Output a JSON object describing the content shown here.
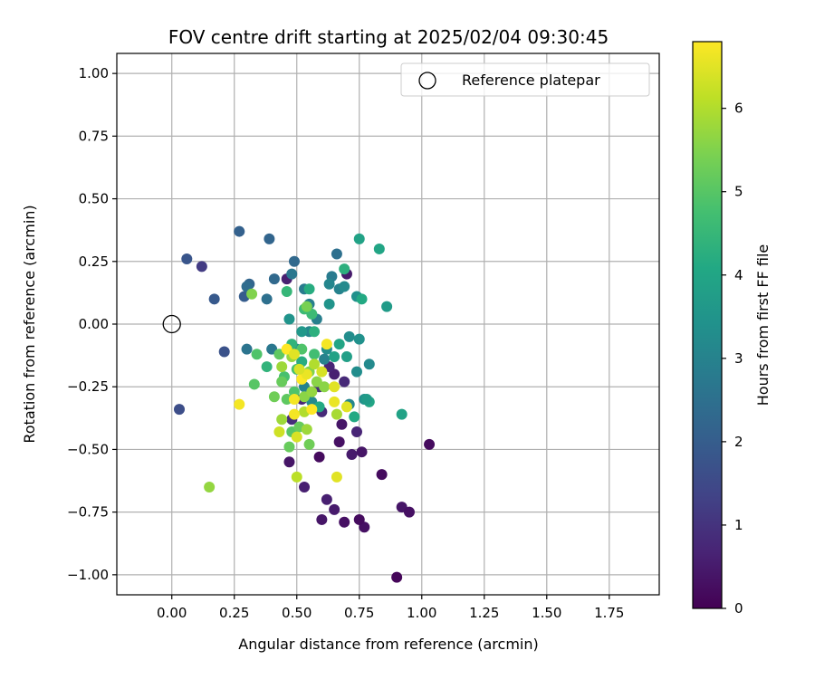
{
  "chart_data": {
    "type": "scatter",
    "title": "FOV centre drift starting at 2025/02/04 09:30:45",
    "xlabel": "Angular distance from reference (arcmin)",
    "ylabel": "Rotation from reference (arcmin)",
    "xlim": [
      -0.22,
      1.95
    ],
    "ylim": [
      -1.08,
      1.08
    ],
    "xticks": [
      "0.00",
      "0.25",
      "0.50",
      "0.75",
      "1.00",
      "1.25",
      "1.50",
      "1.75"
    ],
    "xtick_values": [
      0,
      0.25,
      0.5,
      0.75,
      1.0,
      1.25,
      1.5,
      1.75
    ],
    "yticks": [
      "1.00",
      "0.75",
      "0.50",
      "0.25",
      "0.00",
      "−0.25",
      "−0.50",
      "−0.75",
      "−1.00"
    ],
    "ytick_values": [
      1.0,
      0.75,
      0.5,
      0.25,
      0,
      -0.25,
      -0.5,
      -0.75,
      -1.0
    ],
    "grid": true,
    "legend": {
      "placement": "top-right",
      "entries": [
        "Reference platepar"
      ]
    },
    "reference_point": {
      "x": 0.0,
      "y": 0.0
    },
    "colorbar": {
      "label": "Hours from first FF file",
      "range": [
        0,
        6.8
      ],
      "ticks": [
        "0",
        "1",
        "2",
        "3",
        "4",
        "5",
        "6"
      ],
      "tick_values": [
        0,
        1,
        2,
        3,
        4,
        5,
        6
      ],
      "colormap": "viridis"
    },
    "points": [
      [
        0.9,
        -1.01,
        0.1
      ],
      [
        0.77,
        -0.81,
        0.3
      ],
      [
        0.75,
        -0.78,
        0.2
      ],
      [
        0.69,
        -0.79,
        0.3
      ],
      [
        0.6,
        -0.78,
        0.4
      ],
      [
        0.65,
        -0.74,
        0.5
      ],
      [
        0.62,
        -0.7,
        0.6
      ],
      [
        0.92,
        -0.73,
        0.4
      ],
      [
        0.95,
        -0.75,
        0.3
      ],
      [
        0.84,
        -0.6,
        0.2
      ],
      [
        1.03,
        -0.48,
        0.2
      ],
      [
        0.76,
        -0.51,
        0.4
      ],
      [
        0.72,
        -0.52,
        0.5
      ],
      [
        0.67,
        -0.47,
        0.3
      ],
      [
        0.59,
        -0.53,
        0.2
      ],
      [
        0.47,
        -0.55,
        0.4
      ],
      [
        0.53,
        -0.65,
        0.6
      ],
      [
        0.68,
        -0.4,
        0.4
      ],
      [
        0.74,
        -0.43,
        0.7
      ],
      [
        0.6,
        -0.35,
        0.8
      ],
      [
        0.48,
        -0.38,
        0.9
      ],
      [
        0.69,
        -0.23,
        0.8
      ],
      [
        0.65,
        -0.2,
        0.6
      ],
      [
        0.52,
        -0.3,
        0.7
      ],
      [
        0.59,
        -0.25,
        0.9
      ],
      [
        0.63,
        -0.17,
        0.7
      ],
      [
        0.7,
        0.2,
        0.5
      ],
      [
        0.46,
        0.18,
        0.6
      ],
      [
        0.12,
        0.23,
        1.2
      ],
      [
        0.03,
        -0.34,
        1.6
      ],
      [
        0.21,
        -0.11,
        1.7
      ],
      [
        0.06,
        0.26,
        1.8
      ],
      [
        0.17,
        0.1,
        1.9
      ],
      [
        0.27,
        0.37,
        2.1
      ],
      [
        0.39,
        0.34,
        2.2
      ],
      [
        0.49,
        0.25,
        2.3
      ],
      [
        0.29,
        0.11,
        2.0
      ],
      [
        0.31,
        0.16,
        2.2
      ],
      [
        0.3,
        0.15,
        2.4
      ],
      [
        0.41,
        0.18,
        2.3
      ],
      [
        0.38,
        0.1,
        2.5
      ],
      [
        0.3,
        -0.1,
        2.6
      ],
      [
        0.4,
        -0.1,
        2.7
      ],
      [
        0.48,
        0.2,
        2.7
      ],
      [
        0.53,
        0.14,
        2.8
      ],
      [
        0.55,
        0.08,
        2.9
      ],
      [
        0.58,
        0.02,
        2.9
      ],
      [
        0.66,
        0.28,
        2.5
      ],
      [
        0.64,
        0.19,
        2.8
      ],
      [
        0.67,
        0.14,
        3.0
      ],
      [
        0.63,
        0.16,
        3.1
      ],
      [
        0.69,
        0.15,
        3.2
      ],
      [
        0.74,
        0.11,
        3.4
      ],
      [
        0.63,
        0.08,
        3.5
      ],
      [
        0.55,
        -0.03,
        3.1
      ],
      [
        0.62,
        -0.1,
        3.3
      ],
      [
        0.71,
        -0.05,
        3.3
      ],
      [
        0.75,
        -0.06,
        3.4
      ],
      [
        0.79,
        -0.16,
        3.2
      ],
      [
        0.74,
        -0.19,
        3.3
      ],
      [
        0.77,
        -0.3,
        3.4
      ],
      [
        0.71,
        -0.32,
        3.1
      ],
      [
        0.61,
        -0.14,
        3.0
      ],
      [
        0.5,
        -0.1,
        3.1
      ],
      [
        0.53,
        -0.25,
        3.0
      ],
      [
        0.56,
        -0.31,
        3.2
      ],
      [
        0.52,
        -0.03,
        3.6
      ],
      [
        0.47,
        0.02,
        3.5
      ],
      [
        0.86,
        0.07,
        3.7
      ],
      [
        0.75,
        0.34,
        3.9
      ],
      [
        0.83,
        0.3,
        4.0
      ],
      [
        0.76,
        0.1,
        4.1
      ],
      [
        0.69,
        0.22,
        4.3
      ],
      [
        0.7,
        -0.13,
        3.8
      ],
      [
        0.65,
        -0.13,
        3.9
      ],
      [
        0.67,
        -0.08,
        4.0
      ],
      [
        0.79,
        -0.31,
        4.0
      ],
      [
        0.78,
        -0.3,
        3.7
      ],
      [
        0.92,
        -0.36,
        3.9
      ],
      [
        0.73,
        -0.37,
        4.1
      ],
      [
        0.59,
        -0.33,
        4.1
      ],
      [
        0.52,
        -0.15,
        4.2
      ],
      [
        0.57,
        -0.03,
        4.3
      ],
      [
        0.48,
        -0.08,
        4.4
      ],
      [
        0.55,
        0.14,
        4.2
      ],
      [
        0.46,
        0.13,
        4.5
      ],
      [
        0.38,
        -0.17,
        4.4
      ],
      [
        0.53,
        0.06,
        4.6
      ],
      [
        0.56,
        0.04,
        4.6
      ],
      [
        0.57,
        -0.12,
        4.7
      ],
      [
        0.5,
        -0.18,
        4.8
      ],
      [
        0.52,
        -0.1,
        4.9
      ],
      [
        0.45,
        -0.21,
        4.8
      ],
      [
        0.49,
        -0.27,
        4.9
      ],
      [
        0.34,
        -0.12,
        4.9
      ],
      [
        0.33,
        -0.24,
        5.0
      ],
      [
        0.43,
        -0.12,
        5.1
      ],
      [
        0.46,
        -0.3,
        5.1
      ],
      [
        0.44,
        -0.23,
        5.2
      ],
      [
        0.41,
        -0.29,
        5.3
      ],
      [
        0.48,
        -0.43,
        5.0
      ],
      [
        0.51,
        -0.41,
        5.2
      ],
      [
        0.47,
        -0.49,
        5.2
      ],
      [
        0.55,
        -0.48,
        5.3
      ],
      [
        0.54,
        0.07,
        5.4
      ],
      [
        0.32,
        0.12,
        5.5
      ],
      [
        0.55,
        -0.19,
        5.5
      ],
      [
        0.58,
        -0.23,
        5.6
      ],
      [
        0.53,
        -0.29,
        5.6
      ],
      [
        0.56,
        -0.27,
        5.7
      ],
      [
        0.61,
        -0.25,
        5.6
      ],
      [
        0.48,
        -0.13,
        5.7
      ],
      [
        0.44,
        -0.17,
        5.8
      ],
      [
        0.44,
        -0.38,
        5.8
      ],
      [
        0.54,
        -0.42,
        5.8
      ],
      [
        0.66,
        -0.36,
        5.9
      ],
      [
        0.53,
        -0.35,
        6.0
      ],
      [
        0.57,
        -0.16,
        6.0
      ],
      [
        0.15,
        -0.65,
        5.7
      ],
      [
        0.5,
        -0.61,
        6.1
      ],
      [
        0.43,
        -0.43,
        6.3
      ],
      [
        0.5,
        -0.45,
        6.4
      ],
      [
        0.6,
        -0.19,
        6.4
      ],
      [
        0.65,
        -0.25,
        6.5
      ],
      [
        0.65,
        -0.31,
        6.6
      ],
      [
        0.7,
        -0.33,
        6.5
      ],
      [
        0.66,
        -0.61,
        6.5
      ],
      [
        0.62,
        -0.08,
        6.7
      ],
      [
        0.46,
        -0.1,
        6.8
      ],
      [
        0.52,
        -0.22,
        6.8
      ],
      [
        0.56,
        -0.34,
        6.8
      ],
      [
        0.49,
        -0.3,
        6.7
      ],
      [
        0.49,
        -0.36,
        6.7
      ],
      [
        0.54,
        -0.2,
        6.6
      ],
      [
        0.27,
        -0.32,
        6.7
      ],
      [
        0.49,
        -0.12,
        6.5
      ],
      [
        0.51,
        -0.18,
        6.4
      ]
    ]
  }
}
